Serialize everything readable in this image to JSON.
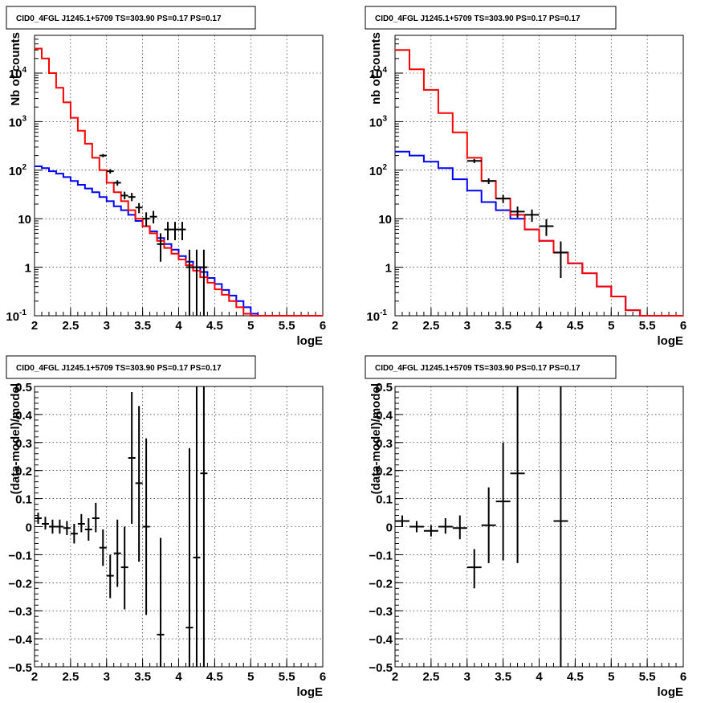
{
  "chart_data": [
    {
      "type": "step",
      "title": "CID0_4FGL J1245.1+5709 TS=303.90 PS=0.17 PS=0.17",
      "xlabel": "logE",
      "ylabel": "Nb of counts",
      "xlim": [
        2,
        6
      ],
      "ylim": [
        0.1,
        60000
      ],
      "yscale": "log",
      "grid": true,
      "x_ticks": [
        "2",
        "2.5",
        "3",
        "3.5",
        "4",
        "4.5",
        "5",
        "5.5",
        "6"
      ],
      "y_ticks": [
        "10^-1",
        "1",
        "10",
        "10^2",
        "10^3",
        "10^4"
      ],
      "colors": {
        "total": "#ff0000",
        "component": "#0000ff",
        "data": "#000000"
      },
      "bin_edges": [
        2.0,
        2.1,
        2.2,
        2.3,
        2.4,
        2.5,
        2.6,
        2.7,
        2.8,
        2.9,
        3.0,
        3.1,
        3.2,
        3.3,
        3.4,
        3.5,
        3.6,
        3.7,
        3.8,
        3.9,
        4.0,
        4.1,
        4.2,
        4.3,
        4.4,
        4.5,
        4.6,
        4.7,
        4.8,
        4.9,
        5.0,
        5.1,
        5.2,
        5.3,
        5.4,
        5.5,
        5.6,
        5.7,
        5.8,
        5.9,
        6.0
      ],
      "series": [
        {
          "values": [
            32000,
            20000,
            10000,
            5000,
            2500,
            1200,
            650,
            350,
            180,
            100,
            55,
            35,
            23,
            15,
            10,
            7,
            5,
            3.5,
            2.5,
            1.9,
            1.45,
            1.1,
            0.85,
            0.62,
            0.48,
            0.35,
            0.27,
            0.2,
            0.15,
            0.11,
            0.1,
            0.1,
            0.1,
            0.1,
            0.1,
            0.1,
            0.1,
            0.1,
            0.1,
            0.1
          ]
        },
        {
          "values": [
            120,
            110,
            95,
            85,
            72,
            60,
            50,
            42,
            35,
            28,
            23,
            18,
            15,
            12,
            9,
            7,
            5.5,
            4,
            3,
            2.3,
            1.7,
            1.3,
            1.0,
            0.8,
            0.6,
            0.45,
            0.34,
            0.26,
            0.2,
            0.15,
            0.11,
            0.1,
            0.1,
            0.1,
            0.1,
            0.1,
            0.1,
            0.1,
            0.1,
            0.1
          ]
        }
      ],
      "points": [
        {
          "x": 2.95,
          "y": 200,
          "xerr": 0.05,
          "ylo": 185,
          "yhi": 215
        },
        {
          "x": 3.05,
          "y": 95,
          "xerr": 0.05,
          "ylo": 85,
          "yhi": 105
        },
        {
          "x": 3.15,
          "y": 55,
          "xerr": 0.05,
          "ylo": 48,
          "yhi": 62
        },
        {
          "x": 3.25,
          "y": 30,
          "xerr": 0.05,
          "ylo": 25,
          "yhi": 36
        },
        {
          "x": 3.35,
          "y": 28,
          "xerr": 0.05,
          "ylo": 23,
          "yhi": 34
        },
        {
          "x": 3.45,
          "y": 17,
          "xerr": 0.05,
          "ylo": 13,
          "yhi": 21
        },
        {
          "x": 3.55,
          "y": 10,
          "xerr": 0.05,
          "ylo": 7,
          "yhi": 13.5
        },
        {
          "x": 3.65,
          "y": 11,
          "xerr": 0.05,
          "ylo": 8,
          "yhi": 14.5
        },
        {
          "x": 3.75,
          "y": 3,
          "xerr": 0.05,
          "ylo": 1.3,
          "yhi": 5
        },
        {
          "x": 3.85,
          "y": 6,
          "xerr": 0.05,
          "ylo": 3.6,
          "yhi": 8.6
        },
        {
          "x": 3.95,
          "y": 6,
          "xerr": 0.05,
          "ylo": 3.6,
          "yhi": 8.6
        },
        {
          "x": 4.05,
          "y": 6,
          "xerr": 0.05,
          "ylo": 3.6,
          "yhi": 8.6
        },
        {
          "x": 4.15,
          "y": 1,
          "xerr": 0.05,
          "ylo": 0.1,
          "yhi": 2.3
        },
        {
          "x": 4.25,
          "y": 1,
          "xerr": 0.05,
          "ylo": 0.1,
          "yhi": 2.3
        },
        {
          "x": 4.35,
          "y": 1,
          "xerr": 0.05,
          "ylo": 0.1,
          "yhi": 2.3
        }
      ]
    },
    {
      "type": "step",
      "title": "CID0_4FGL J1245.1+5709 TS=303.90 PS=0.17 PS=0.17",
      "xlabel": "logE",
      "ylabel": "nb of counts",
      "xlim": [
        2,
        6
      ],
      "ylim": [
        0.1,
        60000
      ],
      "yscale": "log",
      "grid": true,
      "x_ticks": [
        "2",
        "2.5",
        "3",
        "3.5",
        "4",
        "4.5",
        "5",
        "5.5",
        "6"
      ],
      "y_ticks": [
        "10^-1",
        "1",
        "10",
        "10^2",
        "10^3",
        "10^4"
      ],
      "colors": {
        "total": "#ff0000",
        "component": "#0000ff",
        "data": "#000000"
      },
      "bin_edges": [
        2.0,
        2.2,
        2.4,
        2.6,
        2.8,
        3.0,
        3.2,
        3.4,
        3.6,
        3.8,
        4.0,
        4.2,
        4.4,
        4.6,
        4.8,
        5.0,
        5.2,
        5.4,
        5.6,
        5.8,
        6.0
      ],
      "series": [
        {
          "values": [
            30000,
            12000,
            4500,
            1500,
            600,
            180,
            60,
            26,
            12,
            6,
            3.5,
            2,
            1.2,
            0.75,
            0.4,
            0.25,
            0.13,
            0.1,
            0.1,
            0.1
          ]
        },
        {
          "values": [
            240,
            200,
            150,
            110,
            65,
            38,
            22,
            15,
            10,
            6,
            3.5,
            2,
            1.2,
            0.75,
            0.4,
            0.25,
            0.13,
            0.1,
            0.1,
            0.1
          ]
        }
      ],
      "points": [
        {
          "x": 3.1,
          "y": 155,
          "xerr": 0.1,
          "ylo": 140,
          "yhi": 170
        },
        {
          "x": 3.3,
          "y": 60,
          "xerr": 0.1,
          "ylo": 52,
          "yhi": 68
        },
        {
          "x": 3.5,
          "y": 26,
          "xerr": 0.1,
          "ylo": 21,
          "yhi": 31
        },
        {
          "x": 3.7,
          "y": 14,
          "xerr": 0.1,
          "ylo": 10.5,
          "yhi": 17.8
        },
        {
          "x": 3.9,
          "y": 12,
          "xerr": 0.1,
          "ylo": 8.6,
          "yhi": 15.5
        },
        {
          "x": 4.1,
          "y": 7,
          "xerr": 0.1,
          "ylo": 4.4,
          "yhi": 9.8
        },
        {
          "x": 4.3,
          "y": 2,
          "xerr": 0.1,
          "ylo": 0.6,
          "yhi": 3.4
        }
      ]
    },
    {
      "type": "errorbar",
      "title": "CID0_4FGL J1245.1+5709 TS=303.90 PS=0.17 PS=0.17",
      "xlabel": "logE",
      "ylabel": "(data-model)/model",
      "xlim": [
        2,
        6
      ],
      "ylim": [
        -0.5,
        0.5
      ],
      "grid": true,
      "x_ticks": [
        "2",
        "2.5",
        "3",
        "3.5",
        "4",
        "4.5",
        "5",
        "5.5",
        "6"
      ],
      "y_ticks": [
        "−0.5",
        "−0.4",
        "−0.3",
        "−0.2",
        "−0.1",
        "0",
        "0.1",
        "0.2",
        "0.3",
        "0.4",
        "0.5"
      ],
      "points": [
        {
          "x": 2.05,
          "y": 0.03,
          "xerr": 0.05,
          "ylo": 0.01,
          "yhi": 0.05
        },
        {
          "x": 2.15,
          "y": 0.01,
          "xerr": 0.05,
          "ylo": -0.01,
          "yhi": 0.035
        },
        {
          "x": 2.25,
          "y": 0.0,
          "xerr": 0.05,
          "ylo": -0.025,
          "yhi": 0.025
        },
        {
          "x": 2.35,
          "y": 0.0,
          "xerr": 0.05,
          "ylo": -0.025,
          "yhi": 0.025
        },
        {
          "x": 2.45,
          "y": -0.005,
          "xerr": 0.05,
          "ylo": -0.03,
          "yhi": 0.02
        },
        {
          "x": 2.55,
          "y": -0.025,
          "xerr": 0.05,
          "ylo": -0.06,
          "yhi": 0.01
        },
        {
          "x": 2.65,
          "y": 0.01,
          "xerr": 0.05,
          "ylo": -0.02,
          "yhi": 0.045
        },
        {
          "x": 2.75,
          "y": -0.01,
          "xerr": 0.05,
          "ylo": -0.05,
          "yhi": 0.03
        },
        {
          "x": 2.85,
          "y": 0.03,
          "xerr": 0.05,
          "ylo": -0.02,
          "yhi": 0.085
        },
        {
          "x": 2.95,
          "y": -0.075,
          "xerr": 0.05,
          "ylo": -0.14,
          "yhi": -0.01
        },
        {
          "x": 3.05,
          "y": -0.175,
          "xerr": 0.05,
          "ylo": -0.255,
          "yhi": -0.1
        },
        {
          "x": 3.15,
          "y": -0.095,
          "xerr": 0.05,
          "ylo": -0.215,
          "yhi": 0.025
        },
        {
          "x": 3.25,
          "y": -0.145,
          "xerr": 0.05,
          "ylo": -0.295,
          "yhi": 0.0
        },
        {
          "x": 3.35,
          "y": 0.245,
          "xerr": 0.05,
          "ylo": 0.01,
          "yhi": 0.48
        },
        {
          "x": 3.45,
          "y": 0.155,
          "xerr": 0.05,
          "ylo": -0.125,
          "yhi": 0.43
        },
        {
          "x": 3.55,
          "y": 0.0,
          "xerr": 0.05,
          "ylo": -0.315,
          "yhi": 0.315
        },
        {
          "x": 3.75,
          "y": -0.385,
          "xerr": 0.05,
          "ylo": -0.5,
          "yhi": -0.04
        },
        {
          "x": 4.15,
          "y": -0.36,
          "xerr": 0.05,
          "ylo": -0.5,
          "yhi": 0.28
        },
        {
          "x": 4.25,
          "y": -0.11,
          "xerr": 0.05,
          "ylo": -0.5,
          "yhi": 0.5
        },
        {
          "x": 4.35,
          "y": 0.19,
          "xerr": 0.05,
          "ylo": -0.5,
          "yhi": 0.5
        }
      ]
    },
    {
      "type": "errorbar",
      "title": "CID0_4FGL J1245.1+5709 TS=303.90 PS=0.17 PS=0.17",
      "xlabel": "logE",
      "ylabel": "(data-model)/model",
      "xlim": [
        2,
        6
      ],
      "ylim": [
        -0.5,
        0.5
      ],
      "grid": true,
      "x_ticks": [
        "2",
        "2.5",
        "3",
        "3.5",
        "4",
        "4.5",
        "5",
        "5.5",
        "6"
      ],
      "y_ticks": [
        "−0.5",
        "−0.4",
        "−0.3",
        "−0.2",
        "−0.1",
        "0",
        "0.1",
        "0.2",
        "0.3",
        "0.4",
        "0.5"
      ],
      "points": [
        {
          "x": 2.1,
          "y": 0.02,
          "xerr": 0.1,
          "ylo": 0.0,
          "yhi": 0.04
        },
        {
          "x": 2.3,
          "y": 0.0,
          "xerr": 0.1,
          "ylo": -0.02,
          "yhi": 0.02
        },
        {
          "x": 2.5,
          "y": -0.015,
          "xerr": 0.1,
          "ylo": -0.035,
          "yhi": 0.005
        },
        {
          "x": 2.7,
          "y": 0.0,
          "xerr": 0.1,
          "ylo": -0.025,
          "yhi": 0.03
        },
        {
          "x": 2.9,
          "y": -0.005,
          "xerr": 0.1,
          "ylo": -0.045,
          "yhi": 0.04
        },
        {
          "x": 3.1,
          "y": -0.145,
          "xerr": 0.1,
          "ylo": -0.22,
          "yhi": -0.08
        },
        {
          "x": 3.3,
          "y": 0.005,
          "xerr": 0.1,
          "ylo": -0.13,
          "yhi": 0.14
        },
        {
          "x": 3.5,
          "y": 0.09,
          "xerr": 0.1,
          "ylo": -0.12,
          "yhi": 0.3
        },
        {
          "x": 3.7,
          "y": 0.19,
          "xerr": 0.1,
          "ylo": -0.13,
          "yhi": 0.5
        },
        {
          "x": 4.3,
          "y": 0.02,
          "xerr": 0.1,
          "ylo": -0.5,
          "yhi": 0.5
        }
      ]
    }
  ]
}
